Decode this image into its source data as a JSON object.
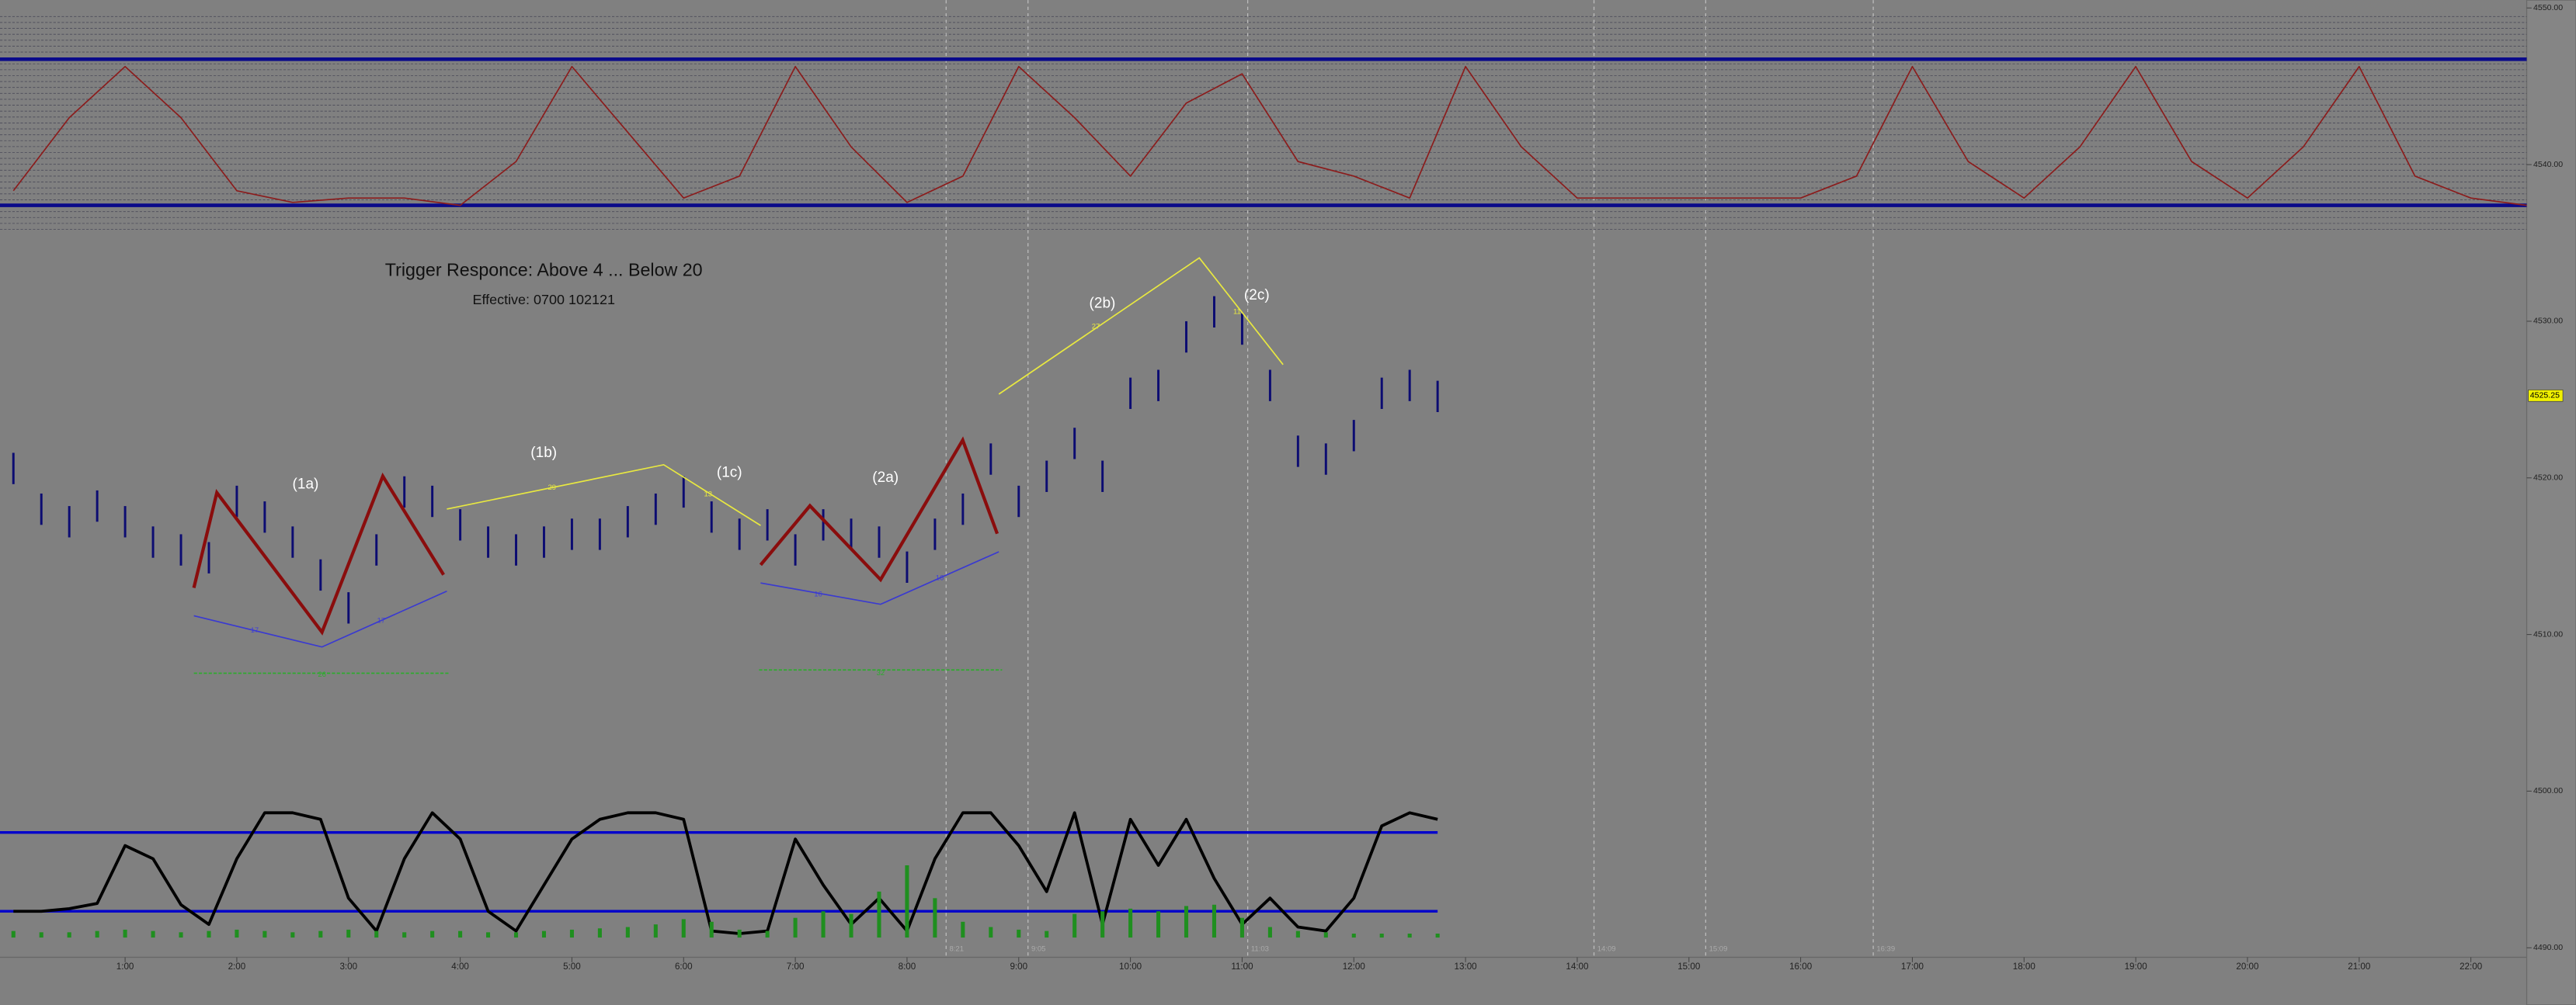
{
  "chart_data": [
    {
      "type": "ohlc",
      "title": "Trigger Responce: Above 4 ... Below 20",
      "subtitle": "Effective: 0700 102121",
      "annotations": [
        "(1a)",
        "(1b)",
        "(1c)",
        "(2a)",
        "(2b)",
        "(2c)",
        "17",
        "17",
        "29",
        "13",
        "16",
        "16",
        "27",
        "11",
        "26",
        "32"
      ],
      "color": "#0c0c72",
      "x": [
        0,
        0.25,
        0.5,
        0.75,
        1,
        1.25,
        1.5,
        1.75,
        2,
        2.25,
        2.5,
        2.75,
        3,
        3.25,
        3.5,
        3.75,
        4,
        4.25,
        4.5,
        4.75,
        5,
        5.25,
        5.5,
        5.75,
        6,
        6.25,
        6.5,
        6.75,
        7,
        7.25,
        7.5,
        7.75,
        8,
        8.25,
        8.5,
        8.75,
        9,
        9.25,
        9.5,
        9.75,
        10,
        10.25,
        10.5,
        10.75,
        11,
        11.25,
        11.5,
        11.75,
        12,
        12.25,
        12.5,
        12.75
      ],
      "high": [
        4521.6,
        4519.0,
        4518.2,
        4519.2,
        4518.2,
        4516.9,
        4516.4,
        4515.9,
        4519.5,
        4518.5,
        4516.9,
        4514.8,
        4512.7,
        4516.4,
        4520.1,
        4519.5,
        4518.0,
        4516.9,
        4516.4,
        4516.9,
        4517.4,
        4517.4,
        4518.2,
        4519.0,
        4520.1,
        4518.5,
        4517.4,
        4518.0,
        4516.4,
        4518.0,
        4517.4,
        4516.9,
        4515.3,
        4517.4,
        4519.0,
        4522.2,
        4519.5,
        4521.1,
        4523.2,
        4521.1,
        4526.4,
        4526.9,
        4530.0,
        4531.6,
        4530.5,
        4526.9,
        4522.7,
        4522.2,
        4523.7,
        4526.4,
        4526.9,
        4526.2
      ],
      "low": [
        4519.6,
        4517.0,
        4516.2,
        4517.2,
        4516.2,
        4514.9,
        4514.4,
        4513.9,
        4517.5,
        4516.5,
        4514.9,
        4512.8,
        4510.7,
        4514.4,
        4518.1,
        4517.5,
        4516.0,
        4514.9,
        4514.4,
        4514.9,
        4515.4,
        4515.4,
        4516.2,
        4517.0,
        4518.1,
        4516.5,
        4515.4,
        4516.0,
        4514.4,
        4516.0,
        4515.4,
        4514.9,
        4513.3,
        4515.4,
        4517.0,
        4520.2,
        4517.5,
        4519.1,
        4521.2,
        4519.1,
        4524.4,
        4524.9,
        4528.0,
        4529.6,
        4528.5,
        4524.9,
        4520.7,
        4520.2,
        4521.7,
        4524.4,
        4524.9,
        4524.2
      ],
      "last_label": {
        "value": 4525.25,
        "label": "4525.25"
      },
      "xlim": [
        -0.12,
        22.5
      ],
      "xticks": [
        {
          "value": 1,
          "label": "1:00"
        },
        {
          "value": 2,
          "label": "2:00"
        },
        {
          "value": 3,
          "label": "3:00"
        },
        {
          "value": 4,
          "label": "4:00"
        },
        {
          "value": 5,
          "label": "5:00"
        },
        {
          "value": 6,
          "label": "6:00"
        },
        {
          "value": 7,
          "label": "7:00"
        },
        {
          "value": 8,
          "label": "8:00"
        },
        {
          "value": 9,
          "label": "9:00"
        },
        {
          "value": 10,
          "label": "10:00"
        },
        {
          "value": 11,
          "label": "11:00"
        },
        {
          "value": 12,
          "label": "12:00"
        },
        {
          "value": 13,
          "label": "13:00"
        },
        {
          "value": 14,
          "label": "14:00"
        },
        {
          "value": 15,
          "label": "15:00"
        },
        {
          "value": 16,
          "label": "16:00"
        },
        {
          "value": 17,
          "label": "17:00"
        },
        {
          "value": 18,
          "label": "18:00"
        },
        {
          "value": 19,
          "label": "19:00"
        },
        {
          "value": 20,
          "label": "20:00"
        },
        {
          "value": 21,
          "label": "21:00"
        },
        {
          "value": 22,
          "label": "22:00"
        }
      ],
      "markers": [
        {
          "value": 8.35,
          "label": "8:21"
        },
        {
          "value": 9.083,
          "label": "9:05"
        },
        {
          "value": 11.05,
          "label": "11:03"
        },
        {
          "value": 14.15,
          "label": "14:09"
        },
        {
          "value": 15.15,
          "label": "15:09"
        },
        {
          "value": 16.65,
          "label": "16:39"
        }
      ],
      "ylim": [
        4489.5,
        4550.5
      ],
      "yticks": [
        {
          "value": 4550,
          "label": "4550.00"
        },
        {
          "value": 4540,
          "label": "4540.00"
        },
        {
          "value": 4530,
          "label": "4530.00"
        },
        {
          "value": 4520,
          "label": "4520.00"
        },
        {
          "value": 4510,
          "label": "4510.00"
        },
        {
          "value": 4500,
          "label": "4500.00"
        },
        {
          "value": 4490,
          "label": "4490.00"
        }
      ]
    },
    {
      "type": "line",
      "color": "#000000",
      "line_color": "#0000cc",
      "hlines": [
        80,
        20
      ],
      "ylim": [
        0,
        100
      ],
      "x": [
        0,
        0.25,
        0.5,
        0.75,
        1,
        1.25,
        1.5,
        1.75,
        2,
        2.25,
        2.5,
        2.75,
        3,
        3.25,
        3.5,
        3.75,
        4,
        4.25,
        4.5,
        4.75,
        5,
        5.25,
        5.5,
        5.75,
        6,
        6.25,
        6.5,
        6.75,
        7,
        7.25,
        7.5,
        7.75,
        8,
        8.25,
        8.5,
        8.75,
        9,
        9.25,
        9.5,
        9.75,
        10,
        10.25,
        10.5,
        10.75,
        11,
        11.25,
        11.5,
        11.75,
        12,
        12.25,
        12.5,
        12.75
      ],
      "values": [
        20,
        20,
        22,
        26,
        70,
        60,
        25,
        10,
        60,
        95,
        95,
        90,
        30,
        5,
        60,
        95,
        75,
        20,
        5,
        40,
        75,
        90,
        95,
        95,
        90,
        5,
        3,
        5,
        75,
        40,
        10,
        30,
        5,
        60,
        95,
        95,
        70,
        35,
        95,
        10,
        90,
        55,
        90,
        45,
        10,
        30,
        8,
        5,
        30,
        85,
        95,
        90
      ]
    },
    {
      "type": "bar",
      "color": "#1f8f1f",
      "ylim": [
        0,
        100
      ],
      "x": [
        0,
        0.25,
        0.5,
        0.75,
        1,
        1.25,
        1.5,
        1.75,
        2,
        2.25,
        2.5,
        2.75,
        3,
        3.25,
        3.5,
        3.75,
        4,
        4.25,
        4.5,
        4.75,
        5,
        5.25,
        5.5,
        5.75,
        6,
        6.25,
        6.5,
        6.75,
        7,
        7.25,
        7.5,
        7.75,
        8,
        8.25,
        8.5,
        8.75,
        9,
        9.25,
        9.5,
        9.75,
        10,
        10.25,
        10.5,
        10.75,
        11,
        11.25,
        11.5,
        11.75,
        12,
        12.25,
        12.5,
        12.75
      ],
      "values": [
        5,
        4,
        4,
        5,
        6,
        5,
        4,
        5,
        6,
        5,
        4,
        5,
        6,
        5,
        4,
        5,
        5,
        4,
        4,
        5,
        6,
        7,
        8,
        10,
        14,
        12,
        6,
        5,
        15,
        20,
        18,
        35,
        55,
        30,
        12,
        8,
        6,
        5,
        18,
        20,
        22,
        20,
        24,
        25,
        15,
        8,
        5,
        4,
        3,
        3,
        3,
        3
      ]
    },
    {
      "type": "line",
      "color": "#8b1c1c",
      "line_color": "#0a0a8a",
      "hlines": [
        100,
        0
      ],
      "ylim": [
        0,
        100
      ],
      "x": [
        0,
        0.5,
        1,
        1.5,
        2,
        2.5,
        3,
        3.5,
        4,
        4.5,
        5,
        5.5,
        6,
        6.5,
        7,
        7.5,
        8,
        8.5,
        9,
        9.5,
        10,
        10.5,
        11,
        11.5,
        12,
        12.5,
        13,
        13.5,
        14,
        14.5,
        15,
        15.5,
        16,
        16.5,
        17,
        17.5,
        18,
        18.5,
        19,
        19.5,
        20,
        20.5,
        21,
        21.5,
        22,
        22.5
      ],
      "values": [
        10,
        60,
        95,
        60,
        10,
        2,
        5,
        5,
        0,
        30,
        95,
        50,
        5,
        20,
        95,
        40,
        2,
        20,
        95,
        60,
        20,
        70,
        90,
        30,
        20,
        5,
        95,
        40,
        5,
        5,
        5,
        5,
        5,
        20,
        95,
        30,
        5,
        40,
        95,
        30,
        5,
        40,
        95,
        20,
        5,
        0
      ]
    }
  ]
}
